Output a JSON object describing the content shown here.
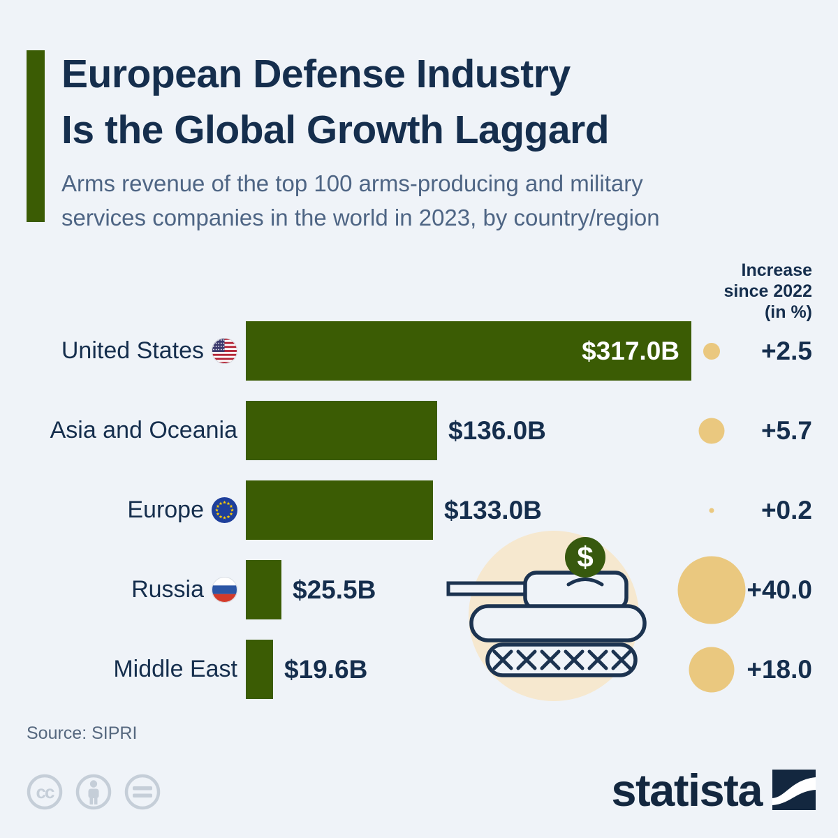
{
  "header": {
    "title_line1": "European Defense Industry",
    "title_line2": "Is the Global Growth Laggard",
    "subtitle_line1": "Arms revenue of the top 100 arms-producing and military",
    "subtitle_line2": "services companies in the world in 2023, by country/region"
  },
  "increase_header": {
    "line1": "Increase",
    "line2": "since 2022",
    "line3": "(in %)"
  },
  "rows": [
    {
      "label": "United States",
      "flag": "us-flag",
      "value": 317.0,
      "value_label": "$317.0B",
      "increase_value": 2.5,
      "increase_label": "+2.5"
    },
    {
      "label": "Asia and Oceania",
      "flag": null,
      "value": 136.0,
      "value_label": "$136.0B",
      "increase_value": 5.7,
      "increase_label": "+5.7"
    },
    {
      "label": "Europe",
      "flag": "eu-flag",
      "value": 133.0,
      "value_label": "$133.0B",
      "increase_value": 0.2,
      "increase_label": "+0.2"
    },
    {
      "label": "Russia",
      "flag": "russia-flag",
      "value": 25.5,
      "value_label": "$25.5B",
      "increase_value": 40.0,
      "increase_label": "+40.0"
    },
    {
      "label": "Middle East",
      "flag": null,
      "value": 19.6,
      "value_label": "$19.6B",
      "increase_value": 18.0,
      "increase_label": "+18.0"
    }
  ],
  "illustration": {
    "name": "tank-piggy-bank",
    "coin_symbol": "$"
  },
  "footer": {
    "source": "Source: SIPRI",
    "brand_wordmark": "statista"
  },
  "colors": {
    "background": "#eff3f8",
    "bar_green": "#3b5c04",
    "coin_green": "#37590e",
    "bubble_tan": "#eac87f",
    "illustration_beige": "#f6e8cf",
    "navy_text": "#152e4d",
    "slate_text": "#4e6584",
    "cc_gray": "#c5ced8"
  },
  "chart_data": {
    "type": "bar",
    "orientation": "horizontal",
    "title": "European Defense Industry Is the Global Growth Laggard",
    "subtitle": "Arms revenue of the top 100 arms-producing and military services companies in the world in 2023, by country/region",
    "categories": [
      "United States",
      "Asia and Oceania",
      "Europe",
      "Russia",
      "Middle East"
    ],
    "series": [
      {
        "name": "Arms revenue 2023 (USD billions)",
        "values": [
          317.0,
          136.0,
          133.0,
          25.5,
          19.6
        ]
      },
      {
        "name": "Increase since 2022 (in %)",
        "values": [
          2.5,
          5.7,
          0.2,
          40.0,
          18.0
        ]
      }
    ],
    "value_labels": [
      "$317.0B",
      "$136.0B",
      "$133.0B",
      "$25.5B",
      "$19.6B"
    ],
    "increase_labels": [
      "+2.5",
      "+5.7",
      "+0.2",
      "+40.0",
      "+18.0"
    ],
    "legend_position": "none",
    "grid": false,
    "source": "Source: SIPRI"
  }
}
